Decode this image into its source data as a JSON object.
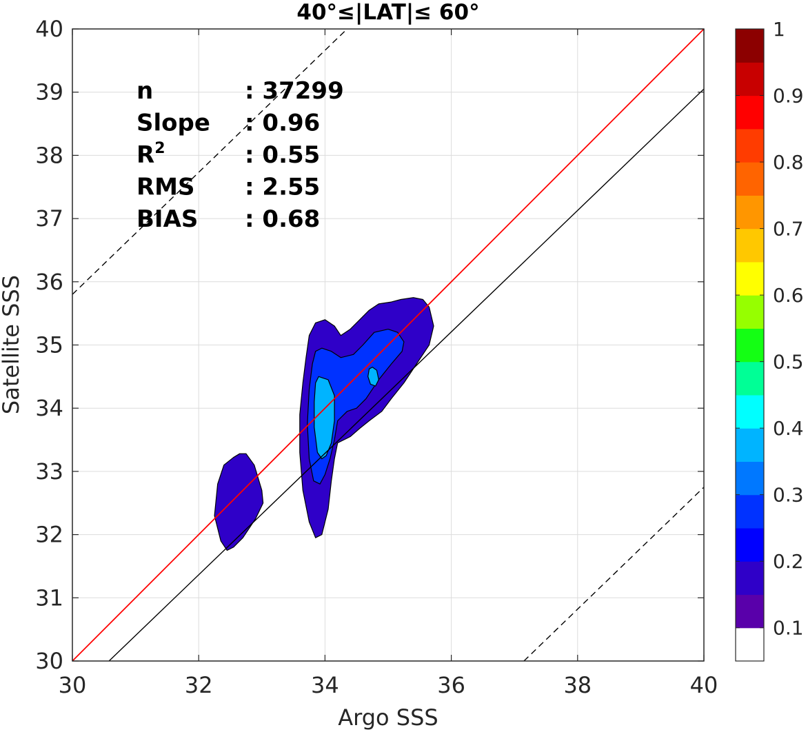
{
  "chart_data": {
    "type": "contour",
    "title": "40°≤|LAT|≤ 60°",
    "xlabel": "Argo SSS",
    "ylabel": "Satellite SSS",
    "xlim": [
      30,
      40
    ],
    "ylim": [
      30,
      40
    ],
    "xticks": [
      "30",
      "32",
      "34",
      "36",
      "38",
      "40"
    ],
    "yticks": [
      "30",
      "31",
      "32",
      "33",
      "34",
      "35",
      "36",
      "37",
      "38",
      "39",
      "40"
    ],
    "grid": true,
    "stats": [
      {
        "key": "n",
        "value": ": 37299"
      },
      {
        "key": "Slope",
        "value": ": 0.96"
      },
      {
        "key": "R",
        "sup": "2",
        "value": ": 0.55"
      },
      {
        "key": "RMS",
        "value": ": 2.55"
      },
      {
        "key": "BIAS",
        "value": ": 0.68"
      }
    ],
    "lines": {
      "identity": {
        "color": "#ff0000",
        "points": [
          [
            30,
            30
          ],
          [
            40,
            40
          ]
        ]
      },
      "fit": {
        "color": "#000000",
        "points": [
          [
            30.58,
            30
          ],
          [
            40,
            39.05
          ]
        ]
      },
      "upper_dashed": {
        "color": "#000000",
        "points": [
          [
            30,
            35.8
          ],
          [
            34.35,
            40
          ]
        ]
      },
      "lower_dashed": {
        "color": "#000000",
        "points": [
          [
            37.15,
            30
          ],
          [
            40,
            32.75
          ]
        ]
      }
    },
    "contours": [
      {
        "level": 0.1,
        "color": "#2f00c8",
        "polygons": [
          [
            [
              32.75,
              33.28
            ],
            [
              32.88,
              33.1
            ],
            [
              33.0,
              32.7
            ],
            [
              33.02,
              32.5
            ],
            [
              32.9,
              32.25
            ],
            [
              32.7,
              31.95
            ],
            [
              32.55,
              31.8
            ],
            [
              32.45,
              31.75
            ],
            [
              32.35,
              31.9
            ],
            [
              32.25,
              32.3
            ],
            [
              32.3,
              32.8
            ],
            [
              32.4,
              33.1
            ],
            [
              32.55,
              33.22
            ],
            [
              32.65,
              33.28
            ]
          ],
          [
            [
              33.85,
              35.35
            ],
            [
              34.0,
              35.4
            ],
            [
              34.15,
              35.3
            ],
            [
              34.25,
              35.15
            ],
            [
              34.4,
              35.25
            ],
            [
              34.55,
              35.4
            ],
            [
              34.7,
              35.55
            ],
            [
              34.85,
              35.65
            ],
            [
              35.05,
              35.68
            ],
            [
              35.2,
              35.72
            ],
            [
              35.4,
              35.75
            ],
            [
              35.55,
              35.72
            ],
            [
              35.65,
              35.6
            ],
            [
              35.72,
              35.3
            ],
            [
              35.65,
              35.0
            ],
            [
              35.45,
              34.7
            ],
            [
              35.25,
              34.4
            ],
            [
              35.05,
              34.15
            ],
            [
              34.9,
              33.95
            ],
            [
              34.7,
              33.8
            ],
            [
              34.55,
              33.68
            ],
            [
              34.4,
              33.55
            ],
            [
              34.2,
              33.45
            ],
            [
              34.15,
              33.2
            ],
            [
              34.1,
              32.85
            ],
            [
              34.05,
              32.4
            ],
            [
              33.95,
              32.0
            ],
            [
              33.85,
              31.95
            ],
            [
              33.75,
              32.2
            ],
            [
              33.65,
              32.7
            ],
            [
              33.6,
              33.3
            ],
            [
              33.6,
              33.9
            ],
            [
              33.65,
              34.4
            ],
            [
              33.7,
              34.8
            ],
            [
              33.75,
              35.15
            ]
          ]
        ]
      },
      {
        "level": 0.2,
        "color": "#0032ff",
        "polygons": [
          [
            [
              33.95,
              34.95
            ],
            [
              34.1,
              34.9
            ],
            [
              34.25,
              34.8
            ],
            [
              34.45,
              34.85
            ],
            [
              34.6,
              35.0
            ],
            [
              34.78,
              35.2
            ],
            [
              35.0,
              35.25
            ],
            [
              35.15,
              35.2
            ],
            [
              35.25,
              35.05
            ],
            [
              35.22,
              34.9
            ],
            [
              35.05,
              34.7
            ],
            [
              34.85,
              34.45
            ],
            [
              34.65,
              34.15
            ],
            [
              34.5,
              34.0
            ],
            [
              34.35,
              33.95
            ],
            [
              34.2,
              33.8
            ],
            [
              34.15,
              33.5
            ],
            [
              34.08,
              33.2
            ],
            [
              34.0,
              32.95
            ],
            [
              33.92,
              32.8
            ],
            [
              33.82,
              32.85
            ],
            [
              33.75,
              33.2
            ],
            [
              33.72,
              33.75
            ],
            [
              33.75,
              34.3
            ],
            [
              33.8,
              34.7
            ],
            [
              33.85,
              34.9
            ]
          ]
        ]
      },
      {
        "level": 0.3,
        "color": "#00b4ff",
        "polygons": [
          [
            [
              33.9,
              34.5
            ],
            [
              34.05,
              34.45
            ],
            [
              34.15,
              34.2
            ],
            [
              34.15,
              33.8
            ],
            [
              34.1,
              33.45
            ],
            [
              34.02,
              33.25
            ],
            [
              33.95,
              33.2
            ],
            [
              33.88,
              33.3
            ],
            [
              33.83,
              33.7
            ],
            [
              33.83,
              34.1
            ],
            [
              33.85,
              34.4
            ]
          ],
          [
            [
              34.75,
              34.65
            ],
            [
              34.82,
              34.6
            ],
            [
              34.85,
              34.45
            ],
            [
              34.8,
              34.35
            ],
            [
              34.72,
              34.38
            ],
            [
              34.68,
              34.5
            ],
            [
              34.7,
              34.62
            ]
          ]
        ]
      }
    ],
    "colorbar": {
      "ticks": [
        "0.1",
        "0.2",
        "0.3",
        "0.4",
        "0.5",
        "0.6",
        "0.7",
        "0.8",
        "0.9",
        "1"
      ],
      "colors": [
        "#ffffff",
        "#5900aa",
        "#2f00c8",
        "#0000ff",
        "#0032ff",
        "#0078ff",
        "#00b4ff",
        "#00ffff",
        "#00ff96",
        "#14ff14",
        "#96ff00",
        "#ffff00",
        "#ffc800",
        "#ff9600",
        "#ff6400",
        "#ff3c00",
        "#ff0000",
        "#c80000",
        "#8c0000"
      ]
    }
  }
}
